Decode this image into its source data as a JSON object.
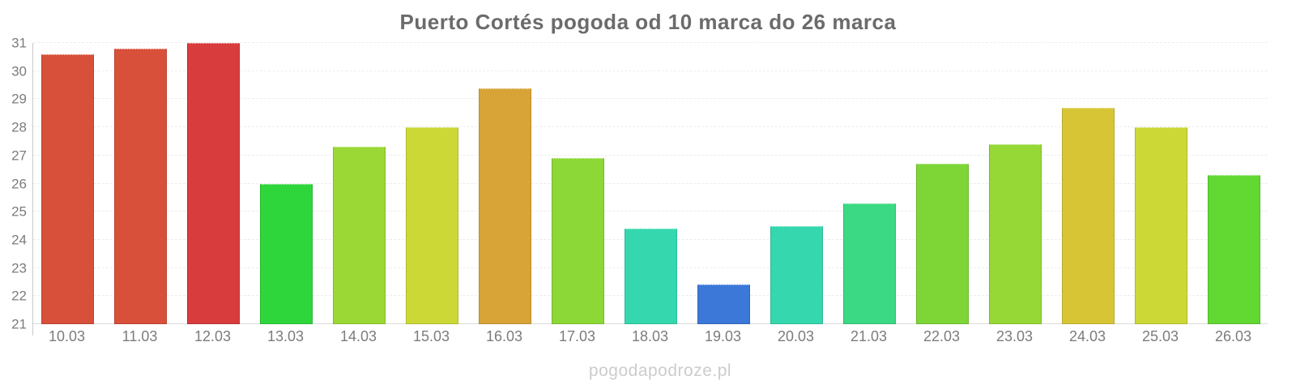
{
  "title": "Puerto Cortés pogoda od 10 marca do 26 marca",
  "watermark": "pogodapodroze.pl",
  "chart_data": {
    "type": "bar",
    "title": "Puerto Cortés pogoda od 10 marca do 26 marca",
    "xlabel": "",
    "ylabel": "",
    "ylim": [
      21,
      31
    ],
    "yticks": [
      21,
      22,
      23,
      24,
      25,
      26,
      27,
      28,
      29,
      30,
      31
    ],
    "grid": "horizontal-dashed",
    "legend": "none",
    "categories": [
      "10.03",
      "11.03",
      "12.03",
      "13.03",
      "14.03",
      "15.03",
      "16.03",
      "17.03",
      "18.03",
      "19.03",
      "20.03",
      "21.03",
      "22.03",
      "23.03",
      "24.03",
      "25.03",
      "26.03"
    ],
    "values": [
      30.6,
      30.8,
      31.0,
      26.0,
      27.3,
      28.0,
      29.4,
      26.9,
      24.4,
      22.4,
      24.5,
      25.3,
      26.7,
      27.4,
      28.7,
      28.0,
      26.3
    ],
    "colors": [
      "#d8503a",
      "#d8503a",
      "#d83c3c",
      "#2fd63b",
      "#9bd836",
      "#ccd836",
      "#d8a438",
      "#8cd836",
      "#35d8ae",
      "#3b78d8",
      "#35d8ae",
      "#3bd983",
      "#7dd636",
      "#96d836",
      "#d8c536",
      "#ccd836",
      "#62d833"
    ]
  }
}
